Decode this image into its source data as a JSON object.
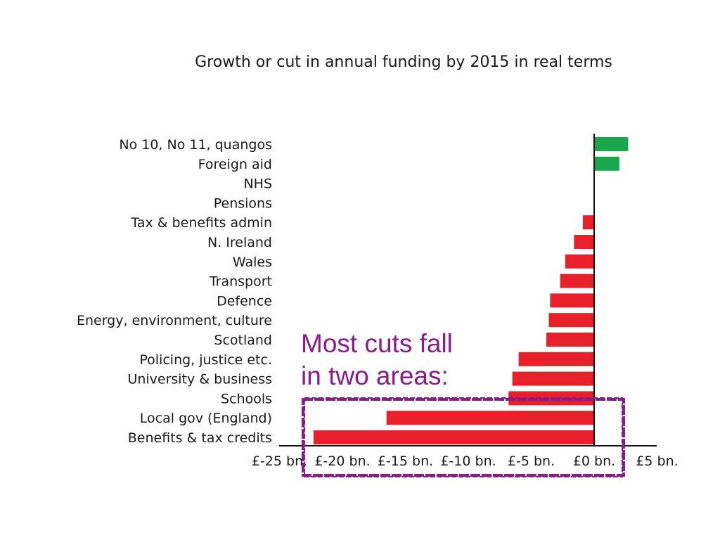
{
  "chart_data": {
    "type": "bar",
    "orientation": "horizontal",
    "title": "Growth or cut in annual funding by 2015 in real terms",
    "categories": [
      "No 10, No 11, quangos",
      "Foreign aid",
      "NHS",
      "Pensions",
      "Tax & benefits admin",
      "N. Ireland",
      "Wales",
      "Transport",
      "Defence",
      "Energy, environment, culture",
      "Scotland",
      "Policing, justice etc.",
      "University & business",
      "Schools",
      "Local gov (England)",
      "Benefits & tax credits"
    ],
    "values": [
      2.7,
      2.0,
      0,
      0,
      -0.9,
      -1.6,
      -2.3,
      -2.7,
      -3.5,
      -3.6,
      -3.8,
      -6.0,
      -6.5,
      -6.8,
      -16.5,
      -22.3
    ],
    "xlim": [
      -25,
      5
    ],
    "tick_labels": [
      "£-25 bn.",
      "£-20 bn.",
      "£-15 bn.",
      "£-10 bn.",
      "£-5 bn.",
      "£0 bn.",
      "£5 bn."
    ],
    "colors": {
      "positive": "#1aa64a",
      "negative": "#e8202a"
    },
    "grid": false,
    "legend": "none"
  },
  "annotation": {
    "line1": "Most cuts fall",
    "line2": "in two areas:",
    "color": "#8b1a8b"
  }
}
